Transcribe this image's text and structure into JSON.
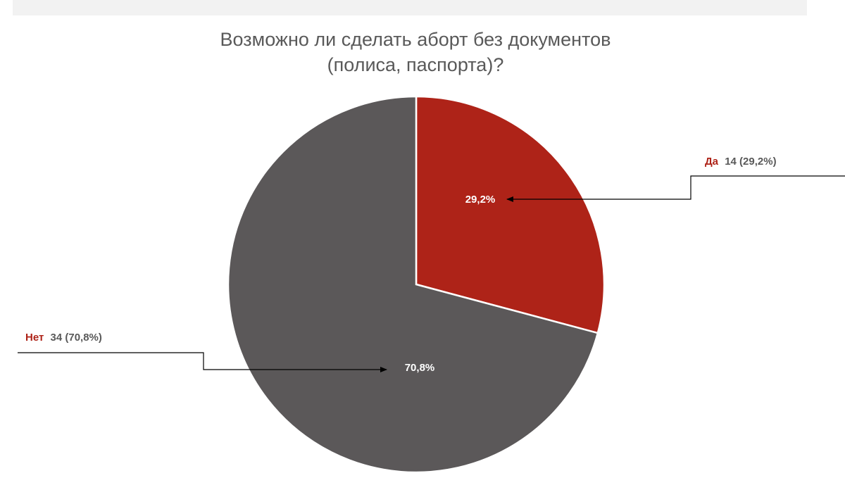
{
  "title_lines": [
    "Возможно ли сделать аборт без документов",
    "(полиса, паспорта)?"
  ],
  "chart_data": {
    "type": "pie",
    "title": "Возможно ли сделать аборт без документов (полиса, паспорта)?",
    "slices": [
      {
        "label": "Да",
        "value": 14,
        "percent": "29,2%",
        "count_text": "14 (29,2%)",
        "color": "#ae2318"
      },
      {
        "label": "Нет",
        "value": 34,
        "percent": "70,8%",
        "count_text": "34 (70,8%)",
        "color": "#5b5859"
      }
    ],
    "legend": "callouts",
    "label_color": "#ae2318",
    "text_color": "#595959"
  }
}
